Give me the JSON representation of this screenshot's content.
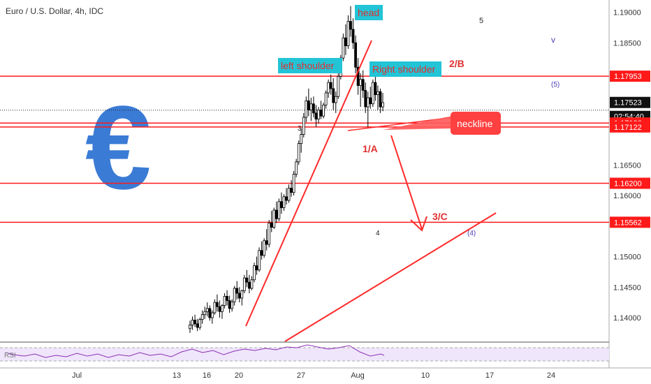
{
  "header": {
    "title": "Euro / U.S. Dollar, 4h, IDC"
  },
  "colors": {
    "up": "#ffffff",
    "down": "#000000",
    "level": "#ff1a1a",
    "trend": "#ff2a2a",
    "label_bg": "#22c4d6",
    "euro": "#3a7bd5",
    "wave_blue": "#4b3bb5",
    "rsi_line": "#8e2fb5",
    "rsi_band": "#efe6fb"
  },
  "annotations": {
    "head": "head",
    "left_shoulder": "left shoulder",
    "right_shoulder": "Right shoulder",
    "neckline": "neckline",
    "wave_2b": "2/B",
    "wave_1a": "1/A",
    "wave_3c": "3/C",
    "wave_3": "3",
    "wave_4": "4",
    "wave_5": "5",
    "wave_v": "v",
    "wave_5p": "(5)",
    "wave_4p": "(4)",
    "euro_symbol": "€"
  },
  "rsi": {
    "label": "RSI"
  },
  "chart_data": {
    "type": "candlestick",
    "title": "Euro / U.S. Dollar, 4h, IDC",
    "ylim": [
      1.136,
      1.192
    ],
    "y_ticks": [
      {
        "value": 1.19,
        "label": "1.19000"
      },
      {
        "value": 1.185,
        "label": "1.18500"
      },
      {
        "value": 1.165,
        "label": "1.16500"
      },
      {
        "value": 1.16,
        "label": "1.16000"
      },
      {
        "value": 1.15,
        "label": "1.15000"
      },
      {
        "value": 1.145,
        "label": "1.14500"
      },
      {
        "value": 1.14,
        "label": "1.14000"
      }
    ],
    "price_labels": [
      {
        "value": 1.17953,
        "label": "1.17953",
        "style": "red"
      },
      {
        "value": 1.17523,
        "label": "1.17523",
        "style": "black"
      },
      {
        "value": 1.1749,
        "label": "02:54:40",
        "style": "black"
      },
      {
        "value": 1.17186,
        "label": "1.17186",
        "style": "red"
      },
      {
        "value": 1.17122,
        "label": "1.17122",
        "style": "red"
      },
      {
        "value": 1.162,
        "label": "1.16200",
        "style": "red"
      },
      {
        "value": 1.15562,
        "label": "1.15562",
        "style": "red"
      }
    ],
    "x_ticks": [
      "Jul",
      "13",
      "16",
      "20",
      "27",
      "Aug",
      "10",
      "17",
      "24"
    ],
    "horizontal_levels": [
      1.17953,
      1.17186,
      1.17122,
      1.162,
      1.15562
    ],
    "current_price": 1.17523,
    "ohlc": [
      [
        1.1382,
        1.1395,
        1.1375,
        1.1388
      ],
      [
        1.1388,
        1.1402,
        1.138,
        1.1396
      ],
      [
        1.1396,
        1.1405,
        1.1385,
        1.139
      ],
      [
        1.139,
        1.1398,
        1.1378,
        1.1384
      ],
      [
        1.1384,
        1.14,
        1.138,
        1.1397
      ],
      [
        1.1397,
        1.1412,
        1.139,
        1.1405
      ],
      [
        1.1405,
        1.1418,
        1.1398,
        1.141
      ],
      [
        1.141,
        1.1425,
        1.1402,
        1.1415
      ],
      [
        1.1415,
        1.142,
        1.1395,
        1.14
      ],
      [
        1.14,
        1.1412,
        1.139,
        1.1408
      ],
      [
        1.1408,
        1.143,
        1.1405,
        1.1425
      ],
      [
        1.1425,
        1.1438,
        1.141,
        1.1418
      ],
      [
        1.1418,
        1.1428,
        1.14,
        1.141
      ],
      [
        1.141,
        1.1422,
        1.1398,
        1.142
      ],
      [
        1.142,
        1.144,
        1.1415,
        1.1435
      ],
      [
        1.1435,
        1.1445,
        1.142,
        1.1428
      ],
      [
        1.1428,
        1.1436,
        1.1408,
        1.1415
      ],
      [
        1.1415,
        1.143,
        1.141,
        1.1426
      ],
      [
        1.1426,
        1.1452,
        1.142,
        1.1448
      ],
      [
        1.1448,
        1.146,
        1.143,
        1.144
      ],
      [
        1.144,
        1.145,
        1.1425,
        1.1432
      ],
      [
        1.1432,
        1.1446,
        1.142,
        1.1444
      ],
      [
        1.1444,
        1.147,
        1.144,
        1.1465
      ],
      [
        1.1465,
        1.1478,
        1.145,
        1.1458
      ],
      [
        1.1458,
        1.147,
        1.144,
        1.1448
      ],
      [
        1.1448,
        1.1468,
        1.1445,
        1.1462
      ],
      [
        1.1462,
        1.149,
        1.1458,
        1.1485
      ],
      [
        1.1485,
        1.15,
        1.147,
        1.1478
      ],
      [
        1.1478,
        1.1515,
        1.1475,
        1.151
      ],
      [
        1.151,
        1.1525,
        1.1495,
        1.1502
      ],
      [
        1.1502,
        1.153,
        1.1498,
        1.1526
      ],
      [
        1.1526,
        1.1545,
        1.151,
        1.152
      ],
      [
        1.152,
        1.156,
        1.1515,
        1.1555
      ],
      [
        1.1555,
        1.1575,
        1.154,
        1.1548
      ],
      [
        1.1548,
        1.158,
        1.1545,
        1.1576
      ],
      [
        1.1576,
        1.159,
        1.1555,
        1.1562
      ],
      [
        1.1562,
        1.1595,
        1.1558,
        1.159
      ],
      [
        1.159,
        1.1605,
        1.157,
        1.158
      ],
      [
        1.158,
        1.1602,
        1.1575,
        1.1598
      ],
      [
        1.1598,
        1.1612,
        1.1585,
        1.1592
      ],
      [
        1.1592,
        1.1618,
        1.1588,
        1.1612
      ],
      [
        1.1612,
        1.1625,
        1.1598,
        1.1605
      ],
      [
        1.1605,
        1.164,
        1.16,
        1.1635
      ],
      [
        1.1635,
        1.166,
        1.163,
        1.1655
      ],
      [
        1.1655,
        1.169,
        1.165,
        1.1685
      ],
      [
        1.1685,
        1.171,
        1.167,
        1.17
      ],
      [
        1.17,
        1.1735,
        1.1695,
        1.1728
      ],
      [
        1.1728,
        1.1762,
        1.172,
        1.1755
      ],
      [
        1.1755,
        1.1775,
        1.173,
        1.174
      ],
      [
        1.174,
        1.176,
        1.1722,
        1.175
      ],
      [
        1.175,
        1.1762,
        1.1728,
        1.1735
      ],
      [
        1.1735,
        1.1748,
        1.1712,
        1.1725
      ],
      [
        1.1725,
        1.1745,
        1.1718,
        1.174
      ],
      [
        1.174,
        1.1755,
        1.1725,
        1.173
      ],
      [
        1.173,
        1.1752,
        1.1726,
        1.1748
      ],
      [
        1.1748,
        1.1772,
        1.1742,
        1.1768
      ],
      [
        1.1768,
        1.179,
        1.176,
        1.1785
      ],
      [
        1.1785,
        1.1798,
        1.1765,
        1.1775
      ],
      [
        1.1775,
        1.1792,
        1.174,
        1.1752
      ],
      [
        1.1752,
        1.177,
        1.1735,
        1.1762
      ],
      [
        1.1762,
        1.18,
        1.1758,
        1.1795
      ],
      [
        1.1795,
        1.183,
        1.179,
        1.1825
      ],
      [
        1.1825,
        1.1865,
        1.182,
        1.1858
      ],
      [
        1.1858,
        1.188,
        1.183,
        1.1845
      ],
      [
        1.1845,
        1.1895,
        1.184,
        1.1885
      ],
      [
        1.1885,
        1.191,
        1.186,
        1.1872
      ],
      [
        1.1872,
        1.189,
        1.184,
        1.185
      ],
      [
        1.185,
        1.1862,
        1.18,
        1.181
      ],
      [
        1.181,
        1.1825,
        1.1765,
        1.178
      ],
      [
        1.178,
        1.18,
        1.1745,
        1.179
      ],
      [
        1.179,
        1.1805,
        1.176,
        1.1772
      ],
      [
        1.1772,
        1.1785,
        1.1735,
        1.1745
      ],
      [
        1.1745,
        1.177,
        1.1712,
        1.176
      ],
      [
        1.176,
        1.1778,
        1.1742,
        1.175
      ],
      [
        1.175,
        1.179,
        1.1745,
        1.1785
      ],
      [
        1.1785,
        1.18,
        1.1755,
        1.1765
      ],
      [
        1.1765,
        1.178,
        1.174,
        1.177
      ],
      [
        1.177,
        1.1775,
        1.1735,
        1.1745
      ],
      [
        1.1745,
        1.1768,
        1.1738,
        1.1752
      ]
    ]
  }
}
